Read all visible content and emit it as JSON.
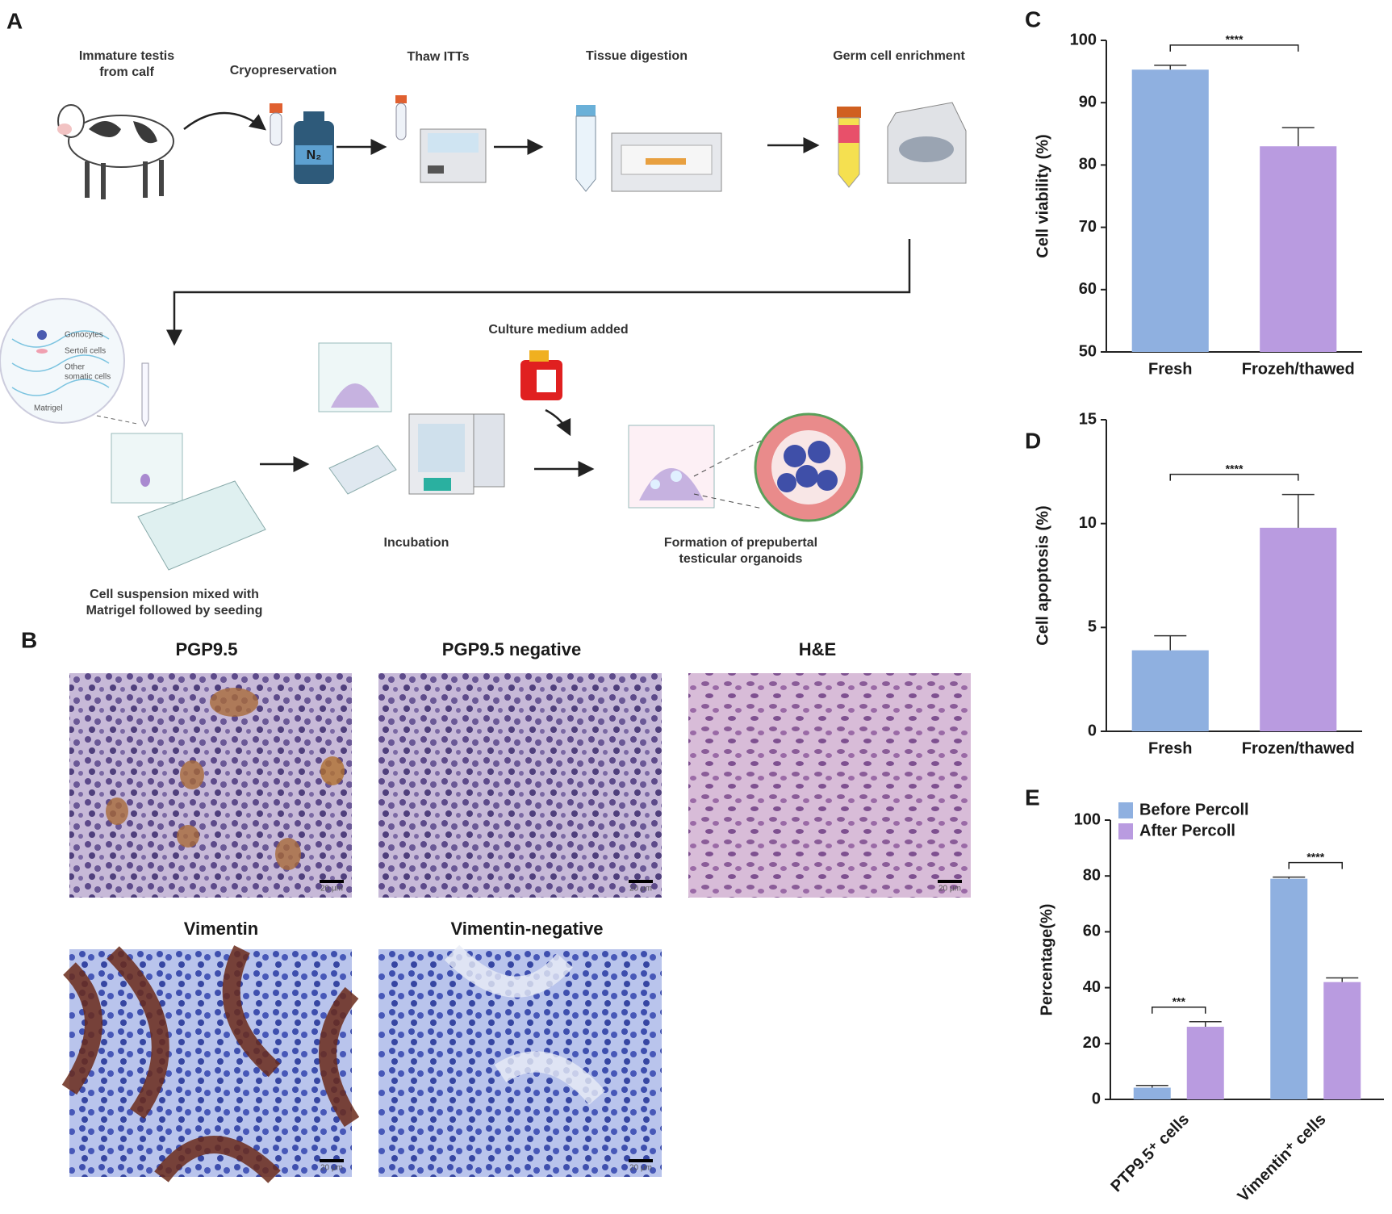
{
  "panel_labels": [
    "A",
    "B",
    "C",
    "D",
    "E"
  ],
  "panel_a": {
    "steps": [
      [
        "Immature testis",
        "from calf"
      ],
      [
        "Cryopreservation"
      ],
      [
        "Thaw ITTs"
      ],
      [
        "Tissue digestion"
      ],
      [
        "Germ cell enrichment"
      ],
      [
        "Cell suspension mixed with",
        "Matrigel followed by seeding"
      ],
      [
        "Incubation"
      ],
      [
        "Culture medium added"
      ],
      [
        "Formation of prepubertal",
        "testicular organoids"
      ]
    ],
    "tank_label": "N₂",
    "inset_labels": [
      "Gonocytes",
      "Sertoli cells",
      "Other",
      "somatic cells",
      "Matrigel"
    ]
  },
  "panel_b": {
    "images": [
      {
        "title": "PGP9.5",
        "scale_bar": "20 μm"
      },
      {
        "title": "PGP9.5 negative",
        "scale_bar": "20 μm"
      },
      {
        "title": "H&E",
        "scale_bar": "20 μm"
      },
      {
        "title": "Vimentin",
        "scale_bar": "20 μm"
      },
      {
        "title": "Vimentin-negative",
        "scale_bar": "20 μm"
      }
    ]
  },
  "chart_data": [
    {
      "type": "bar",
      "y_label": "Cell viability (%)",
      "categories": [
        "Fresh",
        "Frozeh/thawed"
      ],
      "values": [
        95.3,
        83
      ],
      "errors": [
        0.7,
        3
      ],
      "colors": [
        "#8fb0e0",
        "#b99be0"
      ],
      "ylim": [
        50,
        100
      ],
      "yticks": [
        50,
        60,
        70,
        80,
        90,
        100
      ],
      "significance": "****"
    },
    {
      "type": "bar",
      "y_label": "Cell apoptosis (%)",
      "categories": [
        "Fresh",
        "Frozen/thawed"
      ],
      "values": [
        3.9,
        9.8
      ],
      "errors": [
        0.7,
        1.6
      ],
      "colors": [
        "#8fb0e0",
        "#b99be0"
      ],
      "ylim": [
        0,
        15
      ],
      "yticks": [
        0,
        5,
        10,
        15
      ],
      "significance": "****"
    },
    {
      "type": "bar",
      "y_label": "Percentage(%)",
      "categories": [
        "PTP9.5⁺ cells",
        "Vimentin⁺ cells"
      ],
      "series": [
        {
          "name": "Before Percoll",
          "color": "#8fb0e0",
          "values": [
            4.2,
            79
          ],
          "errors": [
            0.8,
            0.6
          ]
        },
        {
          "name": "After Percoll",
          "color": "#b99be0",
          "values": [
            26,
            42
          ],
          "errors": [
            1.8,
            1.5
          ]
        }
      ],
      "ylim": [
        0,
        100
      ],
      "yticks": [
        0,
        20,
        40,
        60,
        80,
        100
      ],
      "significance": [
        "***",
        "****"
      ],
      "legend": "upper left"
    }
  ]
}
